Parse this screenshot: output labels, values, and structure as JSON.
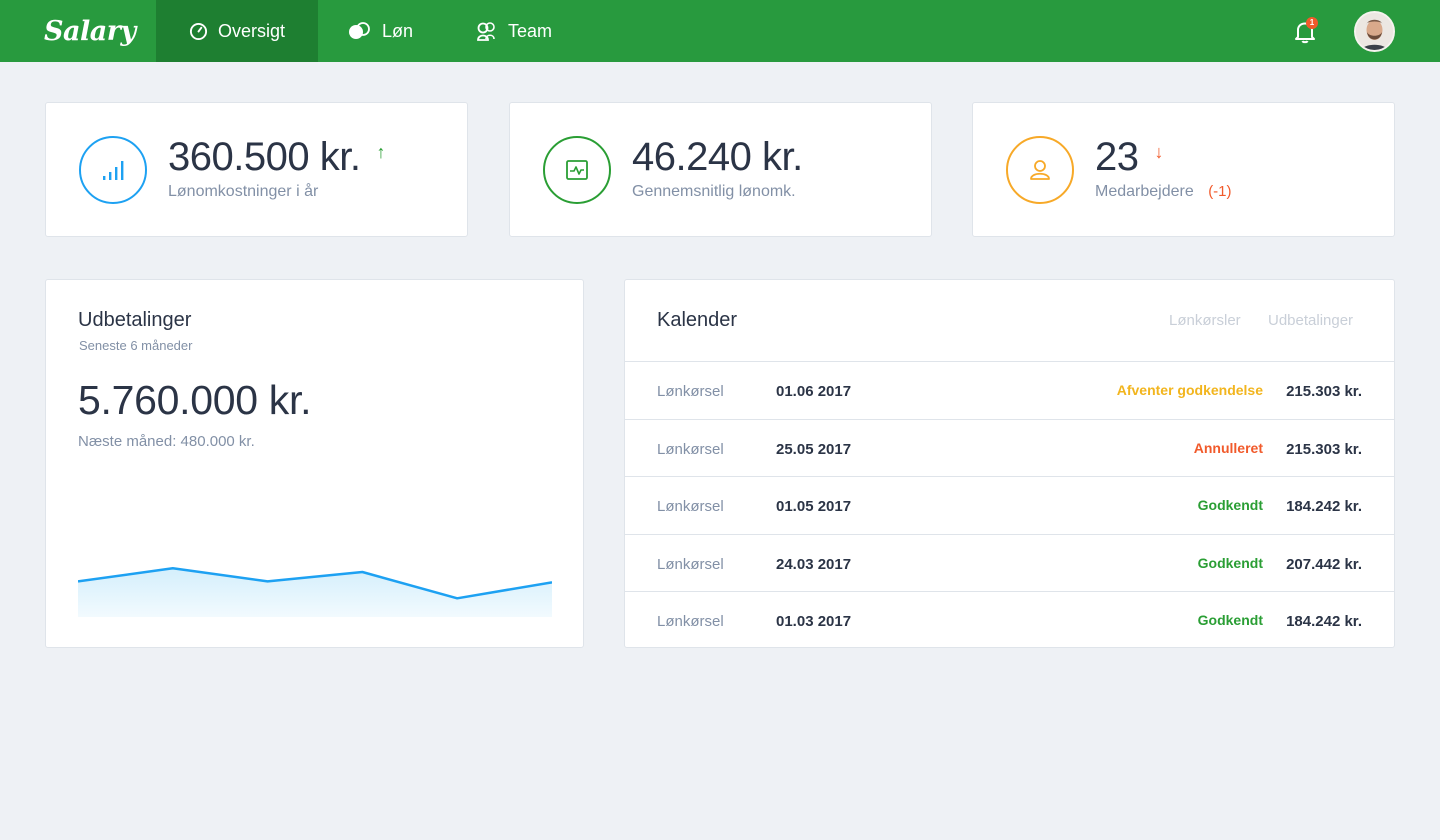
{
  "app": {
    "logo": "Salary"
  },
  "nav": {
    "items": [
      {
        "label": "Oversigt",
        "icon": "gauge-icon",
        "active": true
      },
      {
        "label": "Løn",
        "icon": "coins-icon",
        "active": false
      },
      {
        "label": "Team",
        "icon": "users-icon",
        "active": false
      }
    ]
  },
  "header": {
    "notification_count": "1",
    "notification_icon": "bell-icon",
    "avatar_icon": "user-avatar"
  },
  "stats": [
    {
      "value": "360.500 kr.",
      "label": "Lønomkostninger i år",
      "trend": "↑",
      "trend_color": "#2a9e34",
      "color": "#1da1f2",
      "icon": "signal-bars-icon"
    },
    {
      "value": "46.240 kr.",
      "label": "Gennemsnitlig lønomk.",
      "trend": "",
      "color": "#2a9e34",
      "icon": "activity-chart-icon"
    },
    {
      "value": "23",
      "label": "Medarbejdere",
      "delta": "(-1)",
      "trend": "↓",
      "trend_color": "#f15a2b",
      "color": "#f7a928",
      "icon": "person-icon"
    }
  ],
  "payouts": {
    "title": "Udbetalinger",
    "subtitle": "Seneste 6 måneder",
    "total": "5.760.000 kr.",
    "next": "Næste måned: 480.000 kr."
  },
  "chart_data": {
    "type": "area",
    "x": [
      1,
      2,
      3,
      4,
      5,
      6
    ],
    "values": [
      38,
      52,
      38,
      48,
      20,
      37
    ],
    "ylim": [
      0,
      80
    ],
    "color": "#1da1f2",
    "grid": false,
    "legend": "none"
  },
  "calendar": {
    "title": "Kalender",
    "tabs": [
      "Lønkørsler",
      "Udbetalinger"
    ],
    "rows": [
      {
        "type": "Lønkørsel",
        "date": "01.06 2017",
        "status": "Afventer godkendelse",
        "status_kind": "pending",
        "amount": "215.303 kr."
      },
      {
        "type": "Lønkørsel",
        "date": "25.05 2017",
        "status": "Annulleret",
        "status_kind": "cancel",
        "amount": "215.303 kr."
      },
      {
        "type": "Lønkørsel",
        "date": "01.05 2017",
        "status": "Godkendt",
        "status_kind": "ok",
        "amount": "184.242 kr."
      },
      {
        "type": "Lønkørsel",
        "date": "24.03 2017",
        "status": "Godkendt",
        "status_kind": "ok",
        "amount": "207.442 kr."
      },
      {
        "type": "Lønkørsel",
        "date": "01.03 2017",
        "status": "Godkendt",
        "status_kind": "ok",
        "amount": "184.242 kr."
      }
    ]
  }
}
